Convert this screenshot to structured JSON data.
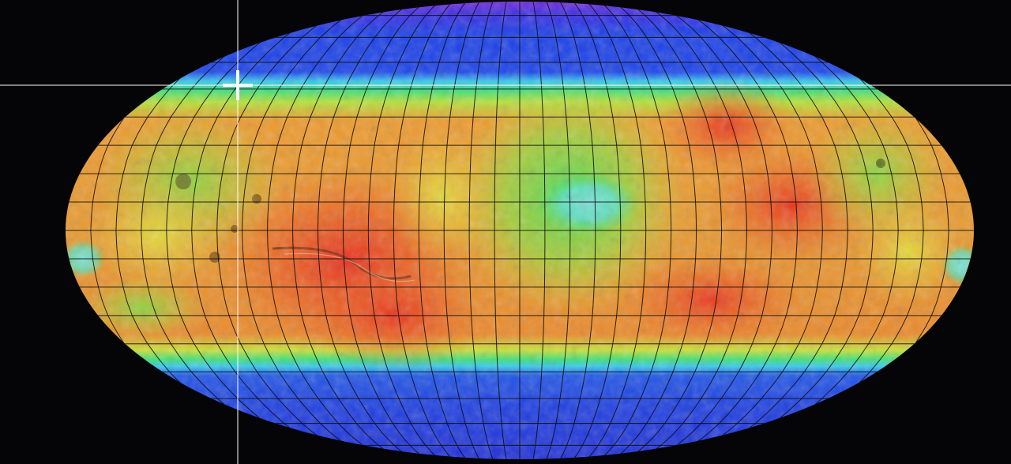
{
  "map": {
    "projection": "robinson",
    "background_color": "#050508",
    "graticule_color": "#0a0a0a",
    "colormap": "elevation-rainbow",
    "graticule": {
      "lon_step_deg": 10,
      "lat_step_deg": 10
    },
    "cursor_icon": "crosshair-cursor-icon",
    "crosshair_line_color": "#ffffff"
  }
}
